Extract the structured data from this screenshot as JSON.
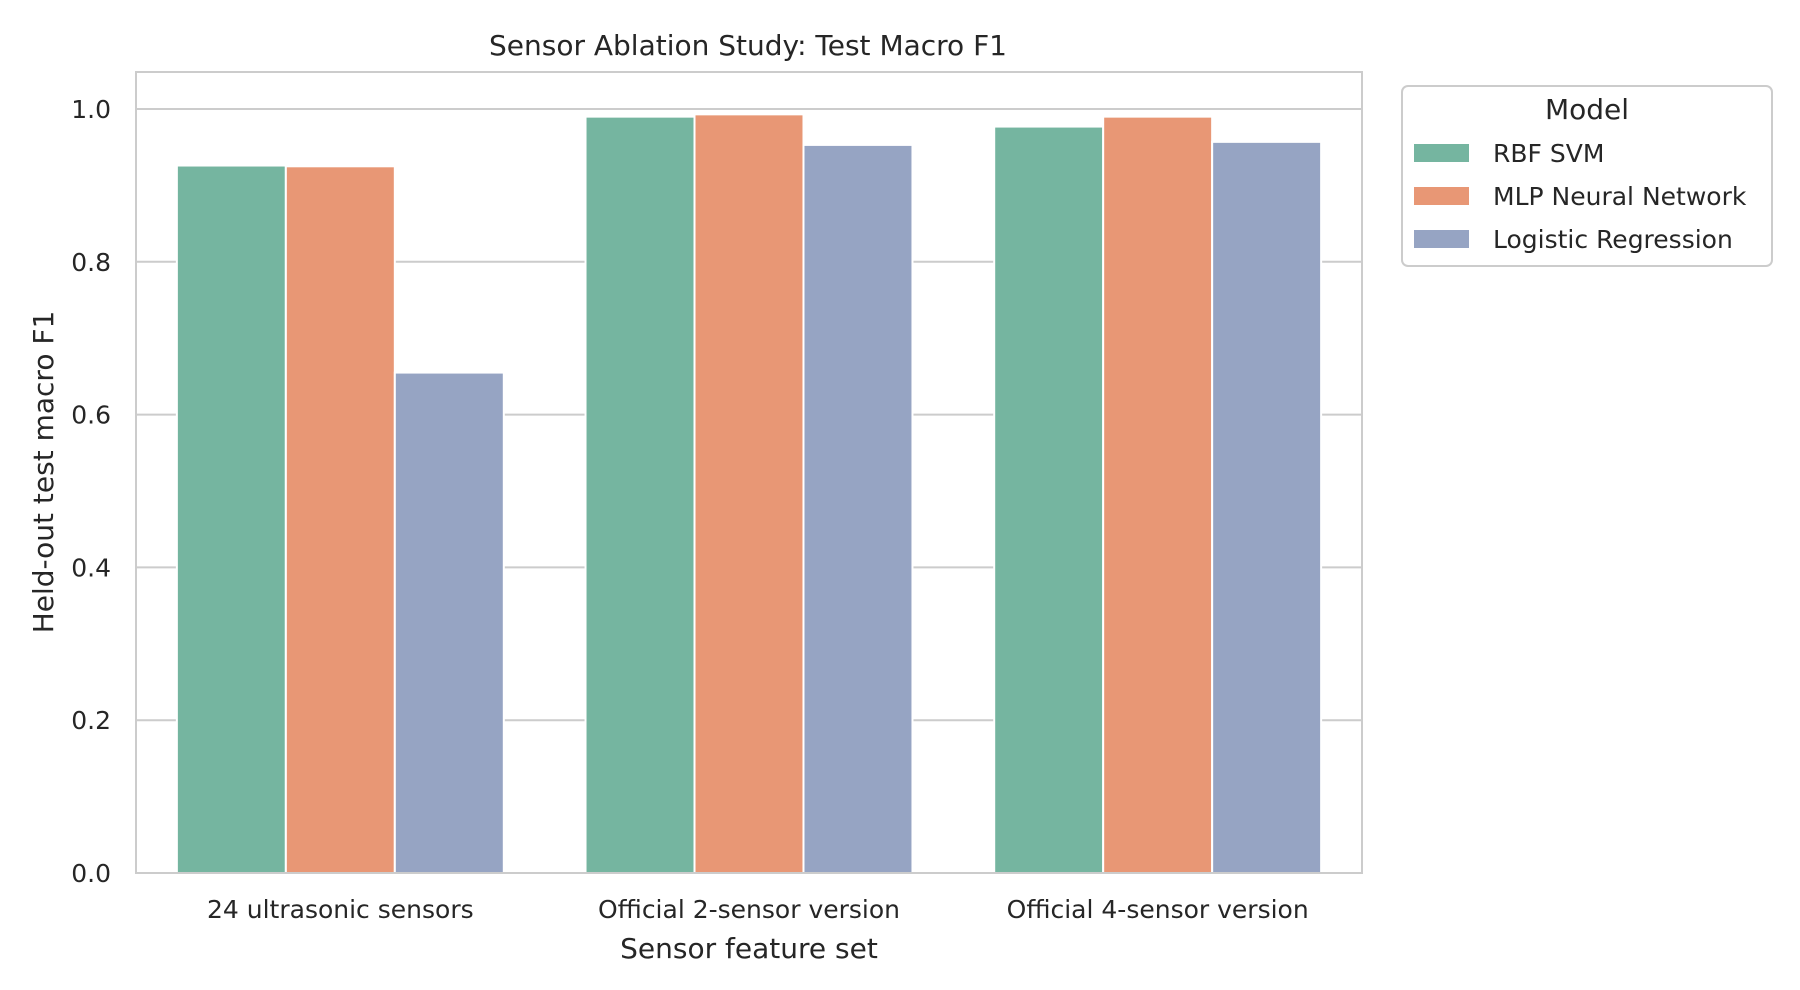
{
  "chart_data": {
    "type": "bar",
    "title": "Sensor Ablation Study: Test Macro F1",
    "xlabel": "Sensor feature set",
    "ylabel": "Held-out test macro F1",
    "categories": [
      "24 ultrasonic sensors",
      "Official 2-sensor version",
      "Official 4-sensor version"
    ],
    "series": [
      {
        "name": "RBF SVM",
        "color": "#75b5a0",
        "values": [
          0.926,
          0.99,
          0.977
        ]
      },
      {
        "name": "MLP Neural Network",
        "color": "#e89775",
        "values": [
          0.925,
          0.993,
          0.99
        ]
      },
      {
        "name": "Logistic Regression",
        "color": "#96a4c3",
        "values": [
          0.655,
          0.953,
          0.957
        ]
      }
    ],
    "ylim": [
      0,
      1.05
    ],
    "yticks": [
      "0.0",
      "0.2",
      "0.4",
      "0.6",
      "0.8",
      "1.0"
    ],
    "grid": true,
    "legend": {
      "title": "Model",
      "placement": "outside-right-top"
    }
  }
}
